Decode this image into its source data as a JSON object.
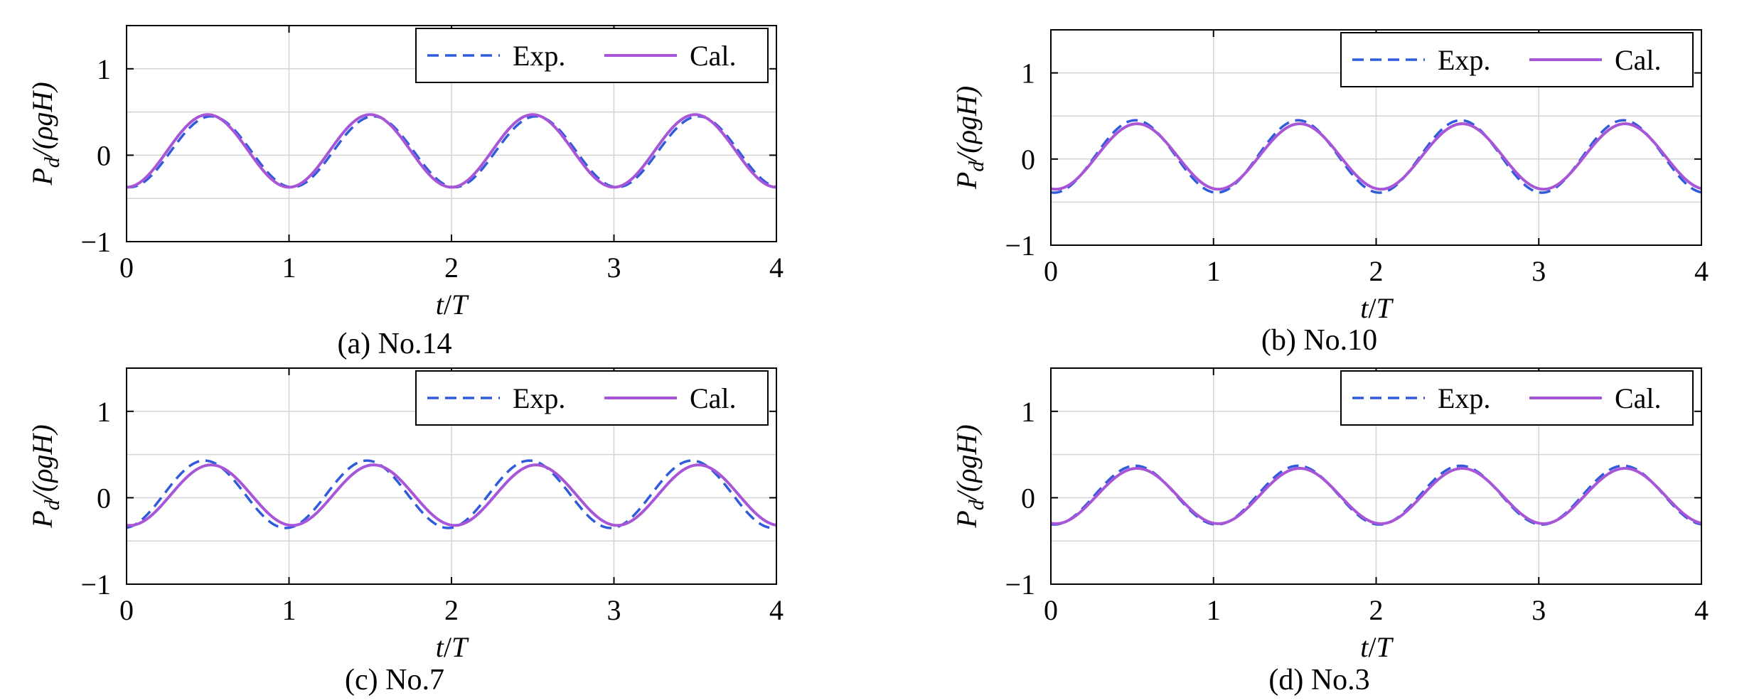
{
  "colors": {
    "exp": "#2f5bdc",
    "cal": "#a856d8",
    "grid": "#d4d4d4",
    "axis": "#000000"
  },
  "legend": {
    "placement": "top-right",
    "exp_label": "Exp.",
    "cal_label": "Cal."
  },
  "axes": {
    "xlabel_t": "t",
    "xlabel_slash": "/",
    "xlabel_T": "T",
    "ylabel_P": "P",
    "ylabel_d": "d",
    "ylabel_rest": "/(ρgH)"
  },
  "chart_data": [
    {
      "type": "line",
      "caption": "(a) No.14",
      "xlim": [
        0,
        4
      ],
      "ylim": [
        -1,
        1.5
      ],
      "xticks": [
        "0",
        "1",
        "2",
        "3",
        "4"
      ],
      "yticks": [
        "−1",
        "0",
        "1"
      ],
      "grid": true,
      "series": [
        {
          "name": "Exp.",
          "style": "dashed",
          "peak_phase": 0.52,
          "amplitude": 0.41,
          "mean": 0.04
        },
        {
          "name": "Cal.",
          "style": "solid",
          "peak_phase": 0.5,
          "amplitude": 0.42,
          "mean": 0.05
        }
      ]
    },
    {
      "type": "line",
      "caption": "(b) No.10",
      "xlim": [
        0,
        4
      ],
      "ylim": [
        -1,
        1.5
      ],
      "xticks": [
        "0",
        "1",
        "2",
        "3",
        "4"
      ],
      "yticks": [
        "−1",
        "0",
        "1"
      ],
      "grid": true,
      "series": [
        {
          "name": "Exp.",
          "style": "dashed",
          "peak_phase": 0.52,
          "amplitude": 0.42,
          "mean": 0.03
        },
        {
          "name": "Cal.",
          "style": "solid",
          "peak_phase": 0.53,
          "amplitude": 0.38,
          "mean": 0.03
        }
      ]
    },
    {
      "type": "line",
      "caption": "(c) No.7",
      "xlim": [
        0,
        4
      ],
      "ylim": [
        -1,
        1.5
      ],
      "xticks": [
        "0",
        "1",
        "2",
        "3",
        "4"
      ],
      "yticks": [
        "−1",
        "0",
        "1"
      ],
      "grid": true,
      "series": [
        {
          "name": "Exp.",
          "style": "dashed",
          "peak_phase": 0.48,
          "amplitude": 0.39,
          "mean": 0.04
        },
        {
          "name": "Cal.",
          "style": "solid",
          "peak_phase": 0.52,
          "amplitude": 0.35,
          "mean": 0.03
        }
      ]
    },
    {
      "type": "line",
      "caption": "(d) No.3",
      "xlim": [
        0,
        4
      ],
      "ylim": [
        -1,
        1.5
      ],
      "xticks": [
        "0",
        "1",
        "2",
        "3",
        "4"
      ],
      "yticks": [
        "−1",
        "0",
        "1"
      ],
      "grid": true,
      "series": [
        {
          "name": "Exp.",
          "style": "dashed",
          "peak_phase": 0.52,
          "amplitude": 0.34,
          "mean": 0.03
        },
        {
          "name": "Cal.",
          "style": "solid",
          "peak_phase": 0.53,
          "amplitude": 0.32,
          "mean": 0.02
        }
      ]
    }
  ]
}
